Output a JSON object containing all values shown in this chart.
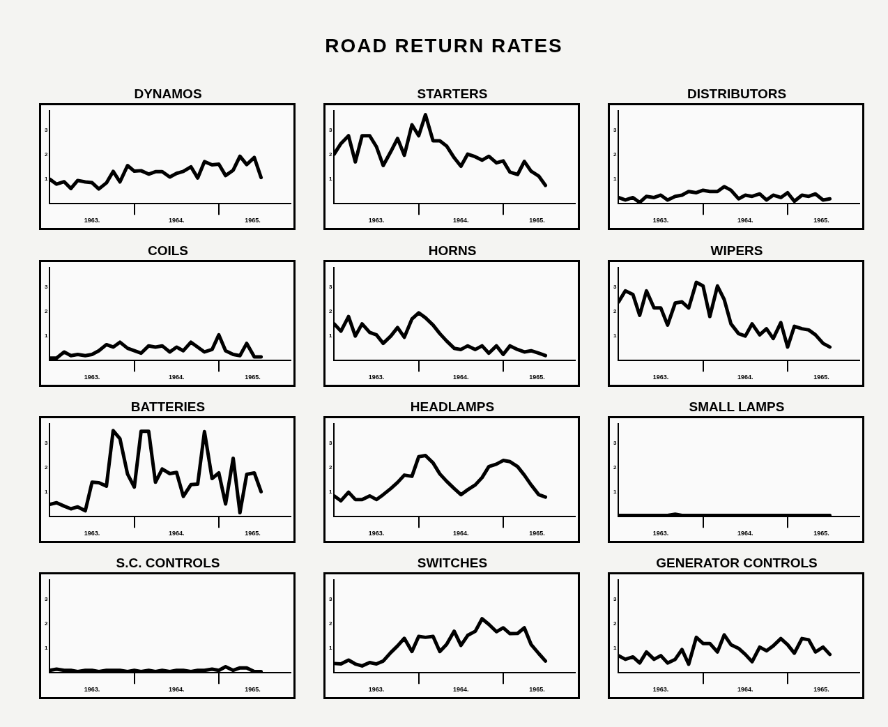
{
  "chart_data": [
    {
      "type": "other",
      "title": "ROAD RETURN RATES"
    },
    {
      "type": "line",
      "title": "DYNAMOS",
      "color": "#000000",
      "x": [
        1963,
        1963.08,
        1963.17,
        1963.25,
        1963.33,
        1963.42,
        1963.5,
        1963.58,
        1963.67,
        1963.75,
        1963.83,
        1963.92,
        1964,
        1964.08,
        1964.17,
        1964.25,
        1964.33,
        1964.42,
        1964.5,
        1964.58,
        1964.67,
        1964.75,
        1964.83,
        1964.92,
        1965,
        1965.08,
        1965.17,
        1965.25,
        1965.33,
        1965.42,
        1965.5
      ],
      "values": [
        1.0,
        0.8,
        0.9,
        0.62,
        0.95,
        0.89,
        0.86,
        0.6,
        0.85,
        1.32,
        0.89,
        1.56,
        1.33,
        1.35,
        1.21,
        1.31,
        1.31,
        1.09,
        1.24,
        1.32,
        1.51,
        1.05,
        1.72,
        1.59,
        1.62,
        1.15,
        1.37,
        1.94,
        1.6,
        1.89,
        1.07
      ],
      "xlim": [
        1963,
        1965.85
      ],
      "xticks": [
        {
          "value": 1963.5,
          "label": "1963."
        },
        {
          "value": 1964,
          "label": null
        },
        {
          "value": 1964.5,
          "label": "1964."
        },
        {
          "value": 1965,
          "label": null
        },
        {
          "value": 1965.4,
          "label": "1965."
        }
      ],
      "ylim": [
        0,
        3.8
      ],
      "yticks": [
        1,
        2,
        3
      ]
    },
    {
      "type": "line",
      "title": "STARTERS",
      "color": "#000000",
      "x": [
        1963,
        1963.08,
        1963.17,
        1963.25,
        1963.33,
        1963.42,
        1963.5,
        1963.58,
        1963.67,
        1963.75,
        1963.83,
        1963.92,
        1964,
        1964.08,
        1964.17,
        1964.25,
        1964.33,
        1964.42,
        1964.5,
        1964.58,
        1964.67,
        1964.75,
        1964.83,
        1964.92,
        1965,
        1965.08,
        1965.17,
        1965.25,
        1965.33,
        1965.42,
        1965.5
      ],
      "values": [
        2.03,
        2.46,
        2.78,
        1.71,
        2.78,
        2.78,
        2.33,
        1.56,
        2.13,
        2.67,
        1.98,
        3.23,
        2.78,
        3.64,
        2.57,
        2.57,
        2.36,
        1.88,
        1.53,
        2.03,
        1.92,
        1.78,
        1.94,
        1.67,
        1.75,
        1.29,
        1.19,
        1.73,
        1.33,
        1.13,
        0.75
      ],
      "xlim": [
        1963,
        1965.85
      ],
      "xticks": [
        {
          "value": 1963.5,
          "label": "1963."
        },
        {
          "value": 1964,
          "label": null
        },
        {
          "value": 1964.5,
          "label": "1964."
        },
        {
          "value": 1965,
          "label": null
        },
        {
          "value": 1965.4,
          "label": "1965."
        }
      ],
      "ylim": [
        0,
        3.8
      ],
      "yticks": [
        1,
        2,
        3
      ]
    },
    {
      "type": "line",
      "title": "DISTRIBUTORS",
      "color": "#000000",
      "x": [
        1963,
        1963.08,
        1963.17,
        1963.25,
        1963.33,
        1963.42,
        1963.5,
        1963.58,
        1963.67,
        1963.75,
        1963.83,
        1963.92,
        1964,
        1964.08,
        1964.17,
        1964.25,
        1964.33,
        1964.42,
        1964.5,
        1964.58,
        1964.67,
        1964.75,
        1964.83,
        1964.92,
        1965,
        1965.08,
        1965.17,
        1965.25,
        1965.33,
        1965.42,
        1965.5
      ],
      "values": [
        0.25,
        0.15,
        0.25,
        0.05,
        0.3,
        0.25,
        0.35,
        0.15,
        0.3,
        0.35,
        0.5,
        0.45,
        0.55,
        0.5,
        0.5,
        0.7,
        0.55,
        0.2,
        0.35,
        0.3,
        0.4,
        0.15,
        0.35,
        0.25,
        0.45,
        0.1,
        0.35,
        0.3,
        0.4,
        0.15,
        0.2
      ],
      "xlim": [
        1963,
        1965.85
      ],
      "xticks": [
        {
          "value": 1963.5,
          "label": "1963."
        },
        {
          "value": 1964,
          "label": null
        },
        {
          "value": 1964.5,
          "label": "1964."
        },
        {
          "value": 1965,
          "label": null
        },
        {
          "value": 1965.4,
          "label": "1965."
        }
      ],
      "ylim": [
        0,
        3.8
      ],
      "yticks": [
        1,
        2,
        3
      ]
    },
    {
      "type": "line",
      "title": "COILS",
      "color": "#000000",
      "x": [
        1963,
        1963.08,
        1963.17,
        1963.25,
        1963.33,
        1963.42,
        1963.5,
        1963.58,
        1963.67,
        1963.75,
        1963.83,
        1963.92,
        1964,
        1964.08,
        1964.17,
        1964.25,
        1964.33,
        1964.42,
        1964.5,
        1964.58,
        1964.67,
        1964.75,
        1964.83,
        1964.92,
        1965,
        1965.08,
        1965.17,
        1965.25,
        1965.33,
        1965.42,
        1965.5
      ],
      "values": [
        0.1,
        0.1,
        0.35,
        0.2,
        0.25,
        0.2,
        0.25,
        0.4,
        0.65,
        0.55,
        0.75,
        0.5,
        0.4,
        0.3,
        0.6,
        0.55,
        0.6,
        0.35,
        0.55,
        0.4,
        0.75,
        0.55,
        0.35,
        0.45,
        1.05,
        0.4,
        0.25,
        0.2,
        0.7,
        0.15,
        0.15
      ],
      "xlim": [
        1963,
        1965.85
      ],
      "xticks": [
        {
          "value": 1963.5,
          "label": "1963."
        },
        {
          "value": 1964,
          "label": null
        },
        {
          "value": 1964.5,
          "label": "1964."
        },
        {
          "value": 1965,
          "label": null
        },
        {
          "value": 1965.4,
          "label": "1965."
        }
      ],
      "ylim": [
        0,
        3.8
      ],
      "yticks": [
        1,
        2,
        3
      ]
    },
    {
      "type": "line",
      "title": "HORNS",
      "color": "#000000",
      "x": [
        1963,
        1963.08,
        1963.17,
        1963.25,
        1963.33,
        1963.42,
        1963.5,
        1963.58,
        1963.67,
        1963.75,
        1963.83,
        1963.92,
        1964,
        1964.08,
        1964.17,
        1964.25,
        1964.33,
        1964.42,
        1964.5,
        1964.58,
        1964.67,
        1964.75,
        1964.83,
        1964.92,
        1965,
        1965.08,
        1965.17,
        1965.25,
        1965.33,
        1965.42,
        1965.5
      ],
      "values": [
        1.5,
        1.2,
        1.8,
        1.0,
        1.5,
        1.15,
        1.05,
        0.7,
        1.0,
        1.35,
        0.95,
        1.7,
        1.95,
        1.75,
        1.45,
        1.1,
        0.8,
        0.5,
        0.45,
        0.6,
        0.45,
        0.6,
        0.3,
        0.6,
        0.25,
        0.6,
        0.45,
        0.35,
        0.4,
        0.3,
        0.2
      ],
      "xlim": [
        1963,
        1965.85
      ],
      "xticks": [
        {
          "value": 1963.5,
          "label": "1963."
        },
        {
          "value": 1964,
          "label": null
        },
        {
          "value": 1964.5,
          "label": "1964."
        },
        {
          "value": 1965,
          "label": null
        },
        {
          "value": 1965.4,
          "label": "1965."
        }
      ],
      "ylim": [
        0,
        3.8
      ],
      "yticks": [
        1,
        2,
        3
      ]
    },
    {
      "type": "line",
      "title": "WIPERS",
      "color": "#000000",
      "x": [
        1963,
        1963.08,
        1963.17,
        1963.25,
        1963.33,
        1963.42,
        1963.5,
        1963.58,
        1963.67,
        1963.75,
        1963.83,
        1963.92,
        1964,
        1964.08,
        1964.17,
        1964.25,
        1964.33,
        1964.42,
        1964.5,
        1964.58,
        1964.67,
        1964.75,
        1964.83,
        1964.92,
        1965,
        1965.08,
        1965.17,
        1965.25,
        1965.33,
        1965.42,
        1965.5
      ],
      "values": [
        2.4,
        2.85,
        2.7,
        1.85,
        2.85,
        2.15,
        2.15,
        1.45,
        2.35,
        2.4,
        2.15,
        3.2,
        3.05,
        1.8,
        3.05,
        2.5,
        1.5,
        1.1,
        1.0,
        1.5,
        1.05,
        1.3,
        0.9,
        1.55,
        0.55,
        1.4,
        1.3,
        1.25,
        1.05,
        0.7,
        0.55
      ],
      "xlim": [
        1963,
        1965.85
      ],
      "xticks": [
        {
          "value": 1963.5,
          "label": "1963."
        },
        {
          "value": 1964,
          "label": null
        },
        {
          "value": 1964.5,
          "label": "1964."
        },
        {
          "value": 1965,
          "label": null
        },
        {
          "value": 1965.4,
          "label": "1965."
        }
      ],
      "ylim": [
        0,
        3.8
      ],
      "yticks": [
        1,
        2,
        3
      ]
    },
    {
      "type": "line",
      "title": "BATTERIES",
      "color": "#000000",
      "x": [
        1963,
        1963.08,
        1963.17,
        1963.25,
        1963.33,
        1963.42,
        1963.5,
        1963.58,
        1963.67,
        1963.75,
        1963.83,
        1963.92,
        1964,
        1964.08,
        1964.17,
        1964.25,
        1964.33,
        1964.42,
        1964.5,
        1964.58,
        1964.67,
        1964.75,
        1964.83,
        1964.92,
        1965,
        1965.08,
        1965.17,
        1965.25,
        1965.33,
        1965.42,
        1965.5
      ],
      "values": [
        0.5,
        0.57,
        0.43,
        0.32,
        0.4,
        0.24,
        1.41,
        1.39,
        1.25,
        3.52,
        3.19,
        1.74,
        1.21,
        3.49,
        3.49,
        1.41,
        1.95,
        1.76,
        1.81,
        0.83,
        1.31,
        1.33,
        3.48,
        1.56,
        1.79,
        0.52,
        2.39,
        0.16,
        1.73,
        1.79,
        1.02
      ],
      "xlim": [
        1963,
        1965.85
      ],
      "xticks": [
        {
          "value": 1963.5,
          "label": "1963."
        },
        {
          "value": 1964,
          "label": null
        },
        {
          "value": 1964.5,
          "label": "1964."
        },
        {
          "value": 1965,
          "label": null
        },
        {
          "value": 1965.4,
          "label": "1965."
        }
      ],
      "ylim": [
        0,
        3.8
      ],
      "yticks": [
        1,
        2,
        3
      ]
    },
    {
      "type": "line",
      "title": "HEADLAMPS",
      "color": "#000000",
      "x": [
        1963,
        1963.08,
        1963.17,
        1963.25,
        1963.33,
        1963.42,
        1963.5,
        1963.58,
        1963.67,
        1963.75,
        1963.83,
        1963.92,
        1964,
        1964.08,
        1964.17,
        1964.25,
        1964.33,
        1964.42,
        1964.5,
        1964.58,
        1964.67,
        1964.75,
        1964.83,
        1964.92,
        1965,
        1965.08,
        1965.17,
        1965.25,
        1965.33,
        1965.42,
        1965.5
      ],
      "values": [
        0.85,
        0.65,
        1.0,
        0.7,
        0.7,
        0.85,
        0.7,
        0.9,
        1.15,
        1.4,
        1.7,
        1.65,
        2.45,
        2.5,
        2.2,
        1.75,
        1.45,
        1.15,
        0.9,
        1.1,
        1.3,
        1.6,
        2.05,
        2.15,
        2.3,
        2.25,
        2.05,
        1.7,
        1.3,
        0.9,
        0.8
      ],
      "xlim": [
        1963,
        1965.85
      ],
      "xticks": [
        {
          "value": 1963.5,
          "label": "1963."
        },
        {
          "value": 1964,
          "label": null
        },
        {
          "value": 1964.5,
          "label": "1964."
        },
        {
          "value": 1965,
          "label": null
        },
        {
          "value": 1965.4,
          "label": "1965."
        }
      ],
      "ylim": [
        0,
        3.8
      ],
      "yticks": [
        1,
        2,
        3
      ]
    },
    {
      "type": "line",
      "title": "SMALL LAMPS",
      "color": "#000000",
      "x": [
        1963,
        1963.08,
        1963.17,
        1963.25,
        1963.33,
        1963.42,
        1963.5,
        1963.58,
        1963.67,
        1963.75,
        1963.83,
        1963.92,
        1964,
        1964.08,
        1964.17,
        1964.25,
        1964.33,
        1964.42,
        1964.5,
        1964.58,
        1964.67,
        1964.75,
        1964.83,
        1964.92,
        1965,
        1965.08,
        1965.17,
        1965.25,
        1965.33,
        1965.42,
        1965.5
      ],
      "values": [
        0.05,
        0.05,
        0.05,
        0.05,
        0.05,
        0.05,
        0.05,
        0.05,
        0.1,
        0.05,
        0.05,
        0.05,
        0.05,
        0.05,
        0.05,
        0.05,
        0.05,
        0.05,
        0.05,
        0.05,
        0.05,
        0.05,
        0.05,
        0.05,
        0.05,
        0.05,
        0.05,
        0.05,
        0.05,
        0.05,
        0.05
      ],
      "xlim": [
        1963,
        1965.85
      ],
      "xticks": [
        {
          "value": 1963.5,
          "label": "1963."
        },
        {
          "value": 1964,
          "label": null
        },
        {
          "value": 1964.5,
          "label": "1964."
        },
        {
          "value": 1965,
          "label": null
        },
        {
          "value": 1965.4,
          "label": "1965."
        }
      ],
      "ylim": [
        0,
        3.8
      ],
      "yticks": [
        1,
        2,
        3
      ]
    },
    {
      "type": "line",
      "title": "S.C. CONTROLS",
      "color": "#000000",
      "x": [
        1963,
        1963.08,
        1963.17,
        1963.25,
        1963.33,
        1963.42,
        1963.5,
        1963.58,
        1963.67,
        1963.75,
        1963.83,
        1963.92,
        1964,
        1964.08,
        1964.17,
        1964.25,
        1964.33,
        1964.42,
        1964.5,
        1964.58,
        1964.67,
        1964.75,
        1964.83,
        1964.92,
        1965,
        1965.08,
        1965.17,
        1965.25,
        1965.33,
        1965.42,
        1965.5
      ],
      "values": [
        0.1,
        0.15,
        0.1,
        0.1,
        0.05,
        0.1,
        0.1,
        0.05,
        0.1,
        0.1,
        0.1,
        0.05,
        0.1,
        0.05,
        0.1,
        0.05,
        0.1,
        0.05,
        0.1,
        0.1,
        0.05,
        0.1,
        0.1,
        0.15,
        0.1,
        0.25,
        0.1,
        0.2,
        0.2,
        0.05,
        0.05
      ],
      "xlim": [
        1963,
        1965.85
      ],
      "xticks": [
        {
          "value": 1963.5,
          "label": "1963."
        },
        {
          "value": 1964,
          "label": null
        },
        {
          "value": 1964.5,
          "label": "1964."
        },
        {
          "value": 1965,
          "label": null
        },
        {
          "value": 1965.4,
          "label": "1965."
        }
      ],
      "ylim": [
        0,
        3.8
      ],
      "yticks": [
        1,
        2,
        3
      ]
    },
    {
      "type": "line",
      "title": "SWITCHES",
      "color": "#000000",
      "x": [
        1963,
        1963.08,
        1963.17,
        1963.25,
        1963.33,
        1963.42,
        1963.5,
        1963.58,
        1963.67,
        1963.75,
        1963.83,
        1963.92,
        1964,
        1964.08,
        1964.17,
        1964.25,
        1964.33,
        1964.42,
        1964.5,
        1964.58,
        1964.67,
        1964.75,
        1964.83,
        1964.92,
        1965,
        1965.08,
        1965.17,
        1965.25,
        1965.33,
        1965.42,
        1965.5
      ],
      "values": [
        0.38,
        0.36,
        0.52,
        0.36,
        0.28,
        0.42,
        0.36,
        0.48,
        0.83,
        1.1,
        1.41,
        0.87,
        1.49,
        1.45,
        1.49,
        0.87,
        1.16,
        1.7,
        1.12,
        1.53,
        1.7,
        2.21,
        1.98,
        1.68,
        1.84,
        1.6,
        1.61,
        1.84,
        1.16,
        0.79,
        0.48
      ],
      "xlim": [
        1963,
        1965.85
      ],
      "xticks": [
        {
          "value": 1963.5,
          "label": "1963."
        },
        {
          "value": 1964,
          "label": null
        },
        {
          "value": 1964.5,
          "label": "1964."
        },
        {
          "value": 1965,
          "label": null
        },
        {
          "value": 1965.4,
          "label": "1965."
        }
      ],
      "ylim": [
        0,
        3.8
      ],
      "yticks": [
        1,
        2,
        3
      ]
    },
    {
      "type": "line",
      "title": "GENERATOR CONTROLS",
      "color": "#000000",
      "x": [
        1963,
        1963.08,
        1963.17,
        1963.25,
        1963.33,
        1963.42,
        1963.5,
        1963.58,
        1963.67,
        1963.75,
        1963.83,
        1963.92,
        1964,
        1964.08,
        1964.17,
        1964.25,
        1964.33,
        1964.42,
        1964.5,
        1964.58,
        1964.67,
        1964.75,
        1964.83,
        1964.92,
        1965,
        1965.08,
        1965.17,
        1965.25,
        1965.33,
        1965.42,
        1965.5
      ],
      "values": [
        0.7,
        0.55,
        0.65,
        0.4,
        0.85,
        0.55,
        0.7,
        0.4,
        0.55,
        0.95,
        0.35,
        1.45,
        1.2,
        1.2,
        0.85,
        1.55,
        1.15,
        1.0,
        0.75,
        0.45,
        1.05,
        0.9,
        1.1,
        1.4,
        1.15,
        0.8,
        1.4,
        1.35,
        0.85,
        1.05,
        0.75
      ],
      "xlim": [
        1963,
        1965.85
      ],
      "xticks": [
        {
          "value": 1963.5,
          "label": "1963."
        },
        {
          "value": 1964,
          "label": null
        },
        {
          "value": 1964.5,
          "label": "1964."
        },
        {
          "value": 1965,
          "label": null
        },
        {
          "value": 1965.4,
          "label": "1965."
        }
      ],
      "ylim": [
        0,
        3.8
      ],
      "yticks": [
        1,
        2,
        3
      ]
    }
  ]
}
